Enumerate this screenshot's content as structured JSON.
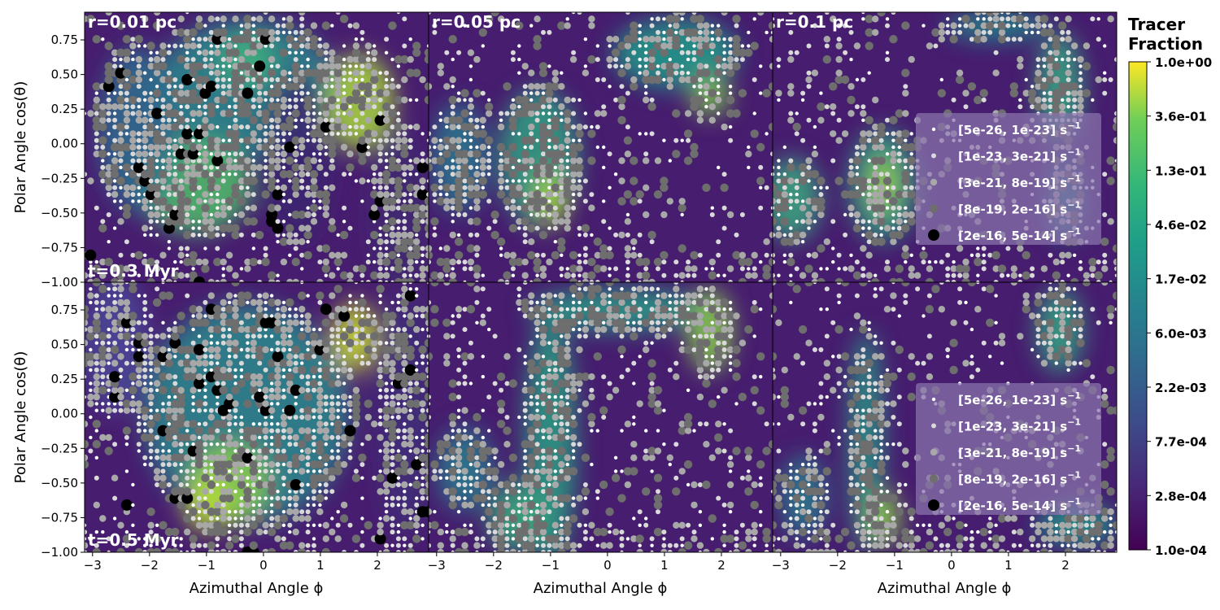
{
  "chart_data": {
    "type": "heatmap",
    "description_free": true,
    "rows": [
      {
        "time_label": "t=0.3 Myr"
      },
      {
        "time_label": "t=0.5 Myr"
      }
    ],
    "columns": [
      {
        "radius_label": "r=0.01 pc"
      },
      {
        "radius_label": "r=0.05 pc"
      },
      {
        "radius_label": "r=0.1 pc"
      }
    ],
    "xlabel": "Azimuthal Angle $\\phi$",
    "xlabel_display": "Azimuthal Angle ϕ",
    "ylabel_display": "Polar Angle cos(θ)",
    "xlim": [
      -3.14,
      2.9
    ],
    "ylim": [
      -1.0,
      0.95
    ],
    "x_ticks": [
      "−3",
      "−2",
      "−1",
      "0",
      "1",
      "2"
    ],
    "x_tick_values": [
      -3,
      -2,
      -1,
      0,
      1,
      2
    ],
    "y_ticks": [
      "0.75",
      "0.50",
      "0.25",
      "0.00",
      "−0.25",
      "−0.50",
      "−0.75",
      "−1.00"
    ],
    "y_tick_values": [
      0.75,
      0.5,
      0.25,
      0.0,
      -0.25,
      -0.5,
      -0.75,
      -1.0
    ],
    "colorbar": {
      "title_line1": "Tracer",
      "title_line2": "Fraction",
      "scale": "log",
      "range": [
        0.0001,
        1.0
      ],
      "ticks": [
        "1.0e+00",
        "3.6e-01",
        "1.3e-01",
        "4.6e-02",
        "1.7e-02",
        "6.0e-03",
        "2.2e-03",
        "7.7e-04",
        "2.8e-04",
        "1.0e-04"
      ],
      "colormap": "viridis"
    },
    "legend": {
      "placement": "right",
      "entries": [
        {
          "label": "[5e-26, 1e-23] s",
          "sup": "−1",
          "color": "#ffffff",
          "size": "smallest"
        },
        {
          "label": "[1e-23, 3e-21] s",
          "sup": "−1",
          "color": "#d9d9d9",
          "size": "small"
        },
        {
          "label": "[3e-21, 8e-19] s",
          "sup": "−1",
          "color": "#a8a8a8",
          "size": "medium"
        },
        {
          "label": "[8e-19, 2e-16] s",
          "sup": "−1",
          "color": "#6e6e6e",
          "size": "large"
        },
        {
          "label": "[2e-16, 5e-14] s",
          "sup": "−1",
          "color": "#000000",
          "size": "largest"
        }
      ]
    }
  }
}
